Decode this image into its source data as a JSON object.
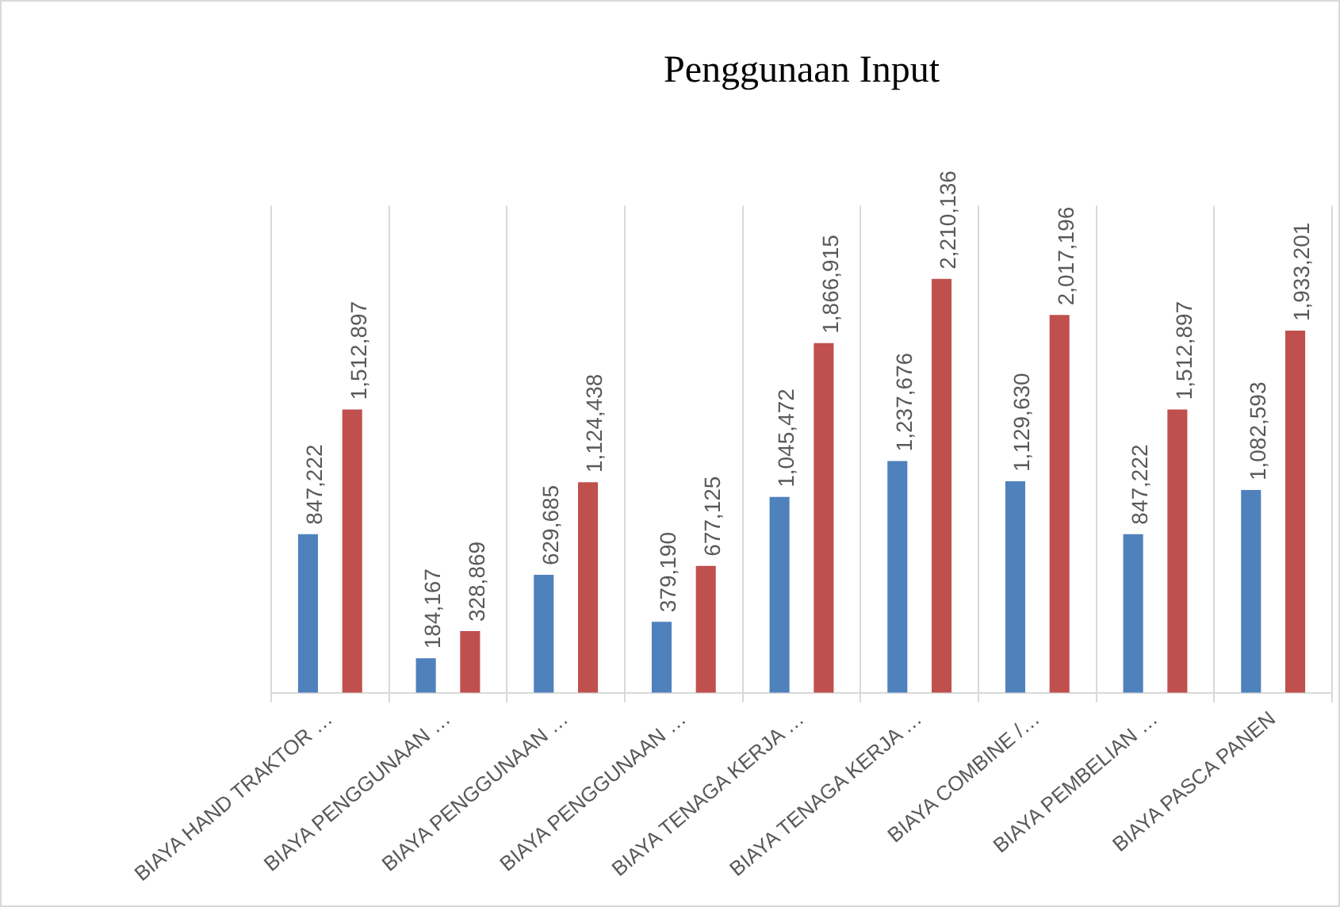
{
  "chart_data": {
    "type": "bar",
    "title": "Penggunaan Input",
    "categories": [
      "BIAYA HAND TRAKTOR …",
      "BIAYA PENGGUNAAN …",
      "BIAYA PENGGUNAAN …",
      "BIAYA PENGGUNAAN …",
      "BIAYA TENAGA KERJA …",
      "BIAYA TENAGA KERJA …",
      "BIAYA COMBINE /…",
      "BIAYA PEMBELIAN …",
      "BIAYA PASCA PANEN"
    ],
    "series": [
      {
        "color": "#4f81bd",
        "values": [
          847222,
          184167,
          629685,
          379190,
          1045472,
          1237676,
          1129630,
          847222,
          1082593
        ],
        "value_labels": [
          "847,222",
          "184,167",
          "629,685",
          "379,190",
          "1,045,472",
          "1,237,676",
          "1,129,630",
          "847,222",
          "1,082,593"
        ]
      },
      {
        "color": "#c0504d",
        "values": [
          1512897,
          328869,
          1124438,
          677125,
          1866915,
          2210136,
          2017196,
          1512897,
          1933201
        ],
        "value_labels": [
          "1,512,897",
          "328,869",
          "1,124,438",
          "677,125",
          "1,866,915",
          "2,210,136",
          "2,017,196",
          "1,512,897",
          "1,933,201"
        ]
      }
    ],
    "ylim": [
      0,
      2600000
    ],
    "tick_labels": "x",
    "grid": "x",
    "legend": false
  }
}
